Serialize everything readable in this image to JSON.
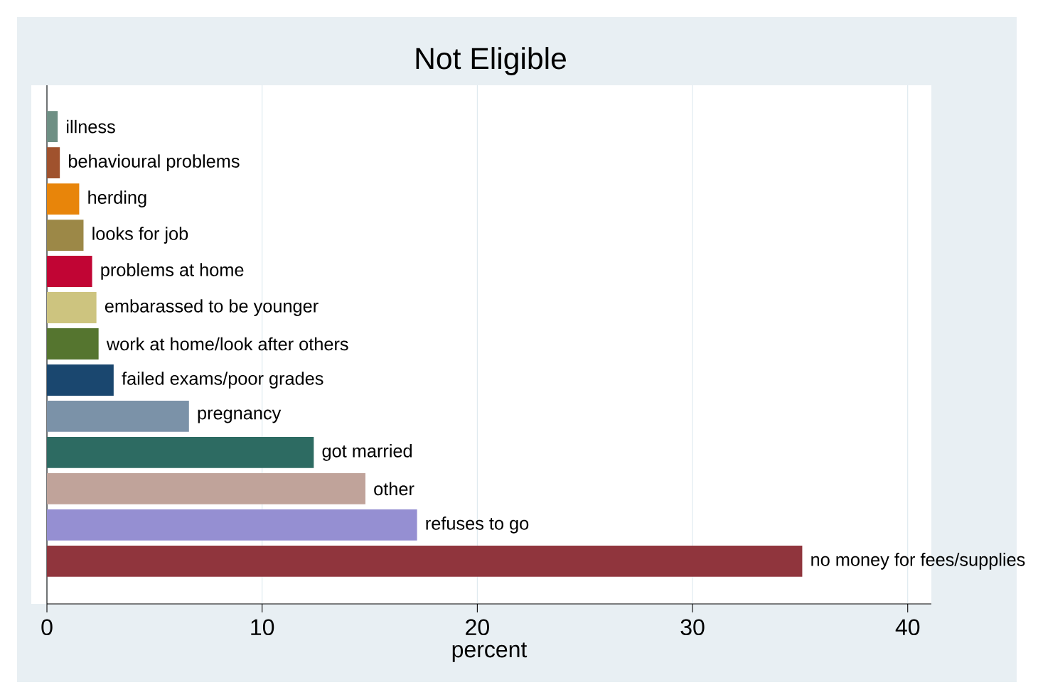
{
  "chart_data": {
    "type": "bar",
    "orientation": "horizontal",
    "title": "Not Eligible",
    "xlabel": "percent",
    "categories": [
      "illness",
      "behavioural problems",
      "herding",
      "looks for job",
      "problems at home",
      "embarassed to be younger",
      "work at home/look after others",
      "failed exams/poor grades",
      "pregnancy",
      "got married",
      "other",
      "refuses to go",
      "no money for fees/supplies"
    ],
    "values": [
      0.5,
      0.6,
      1.5,
      1.7,
      2.1,
      2.3,
      2.4,
      3.1,
      6.6,
      12.4,
      14.8,
      17.2,
      35.1
    ],
    "colors": [
      "#6e8f84",
      "#a0522d",
      "#e8850a",
      "#9c8847",
      "#c10534",
      "#cdc47f",
      "#55752f",
      "#1a476f",
      "#7b92a8",
      "#2d6b62",
      "#c0a39a",
      "#958fd2",
      "#90353d"
    ],
    "xlim": [
      0,
      41.1
    ],
    "xticks": [
      0,
      10,
      20,
      30,
      40
    ],
    "grid": "x",
    "tick_labels": "x"
  }
}
